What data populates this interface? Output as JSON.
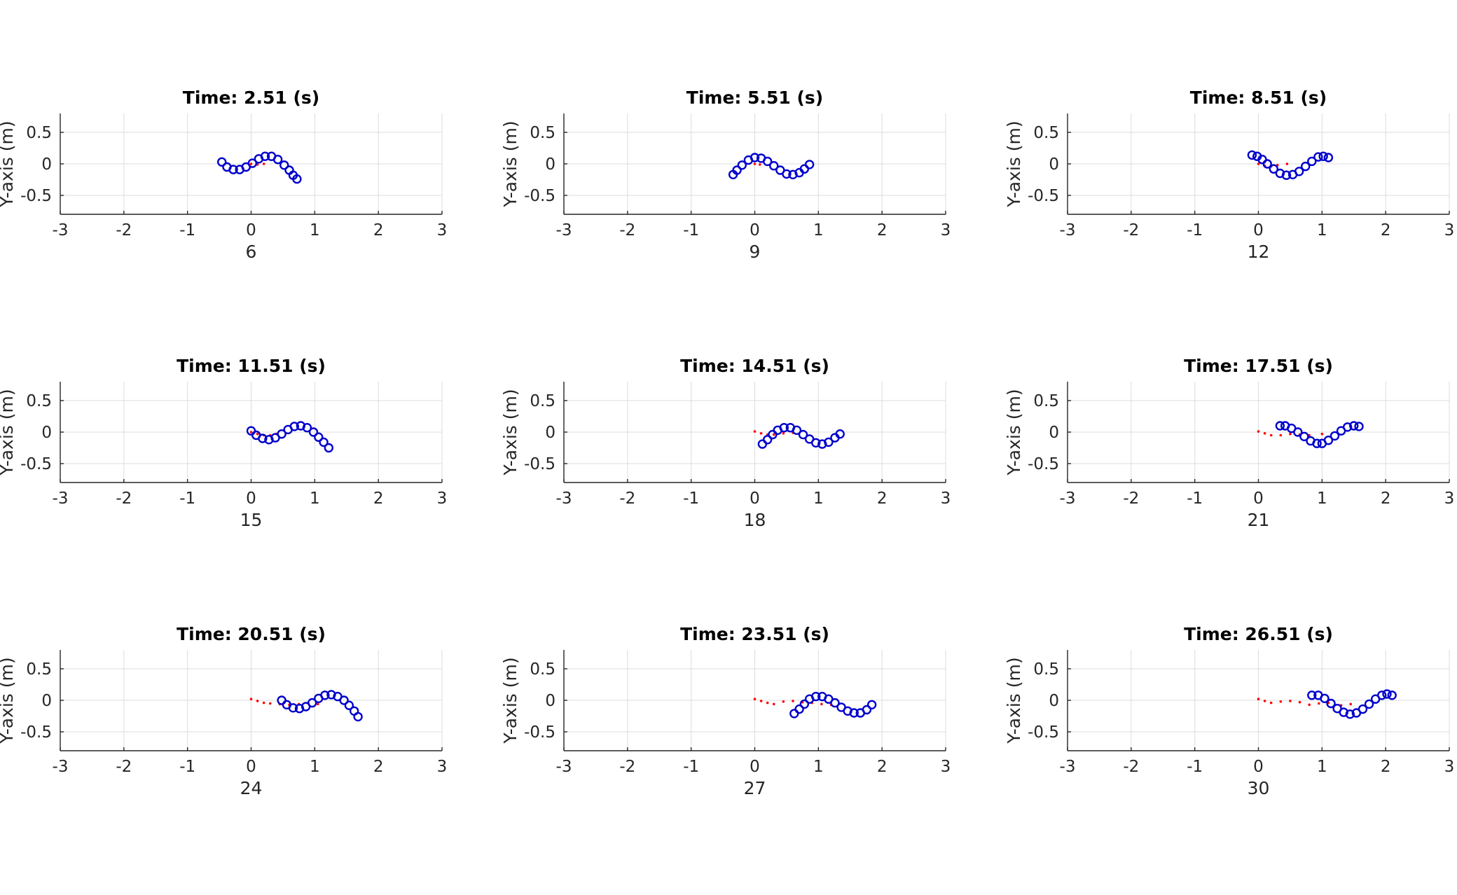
{
  "chart_data": [
    {
      "type": "scatter",
      "title": "Time: 2.51 (s)",
      "xlabel": "6",
      "ylabel": "Y-axis (m)",
      "xlim": [
        -3,
        3
      ],
      "ylim": [
        -0.8,
        0.8
      ],
      "xticks": [
        "-3",
        "-2",
        "-1",
        "0",
        "1",
        "2",
        "3"
      ],
      "yticks": [
        "0.5",
        "0",
        "-0.5"
      ],
      "grid": true,
      "series": [
        {
          "color": "#ff0000",
          "marker": "dot",
          "x": [
            0.0,
            0.1,
            0.2
          ],
          "y": [
            0.0,
            -0.01,
            0.0
          ]
        },
        {
          "color": "#0000cc",
          "marker": "circle",
          "x": [
            -0.46,
            -0.38,
            -0.28,
            -0.18,
            -0.08,
            0.02,
            0.12,
            0.22,
            0.32,
            0.42,
            0.52,
            0.6,
            0.66,
            0.72
          ],
          "y": [
            0.03,
            -0.05,
            -0.09,
            -0.09,
            -0.05,
            0.01,
            0.08,
            0.12,
            0.12,
            0.07,
            -0.02,
            -0.1,
            -0.18,
            -0.24
          ]
        }
      ]
    },
    {
      "type": "scatter",
      "title": "Time: 5.51 (s)",
      "xlabel": "9",
      "ylabel": "Y-axis (m)",
      "xlim": [
        -3,
        3
      ],
      "ylim": [
        -0.8,
        0.8
      ],
      "xticks": [
        "-3",
        "-2",
        "-1",
        "0",
        "1",
        "2",
        "3"
      ],
      "yticks": [
        "0.5",
        "0",
        "-0.5"
      ],
      "grid": true,
      "series": [
        {
          "color": "#ff0000",
          "marker": "dot",
          "x": [
            0.0,
            0.08
          ],
          "y": [
            0.0,
            -0.01
          ]
        },
        {
          "color": "#0000cc",
          "marker": "circle",
          "x": [
            -0.34,
            -0.28,
            -0.2,
            -0.1,
            0.0,
            0.1,
            0.2,
            0.3,
            0.4,
            0.5,
            0.6,
            0.7,
            0.78,
            0.86
          ],
          "y": [
            -0.17,
            -0.1,
            -0.02,
            0.06,
            0.1,
            0.09,
            0.04,
            -0.03,
            -0.1,
            -0.16,
            -0.17,
            -0.14,
            -0.08,
            -0.01
          ]
        }
      ]
    },
    {
      "type": "scatter",
      "title": "Time: 8.51 (s)",
      "xlabel": "12",
      "ylabel": "Y-axis (m)",
      "xlim": [
        -3,
        3
      ],
      "ylim": [
        -0.8,
        0.8
      ],
      "xticks": [
        "-3",
        "-2",
        "-1",
        "0",
        "1",
        "2",
        "3"
      ],
      "yticks": [
        "0.5",
        "0",
        "-0.5"
      ],
      "grid": true,
      "series": [
        {
          "color": "#ff0000",
          "marker": "dot",
          "x": [
            0.0,
            0.1,
            0.2,
            0.3,
            0.45
          ],
          "y": [
            0.0,
            -0.03,
            -0.04,
            -0.02,
            0.0
          ]
        },
        {
          "color": "#0000cc",
          "marker": "circle",
          "x": [
            -0.1,
            -0.02,
            0.06,
            0.14,
            0.24,
            0.34,
            0.44,
            0.54,
            0.64,
            0.74,
            0.84,
            0.94,
            1.02,
            1.1
          ],
          "y": [
            0.14,
            0.12,
            0.07,
            0.0,
            -0.08,
            -0.15,
            -0.18,
            -0.17,
            -0.12,
            -0.04,
            0.04,
            0.11,
            0.12,
            0.1
          ]
        }
      ]
    },
    {
      "type": "scatter",
      "title": "Time: 11.51 (s)",
      "xlabel": "15",
      "ylabel": "Y-axis (m)",
      "xlim": [
        -3,
        3
      ],
      "ylim": [
        -0.8,
        0.8
      ],
      "xticks": [
        "-3",
        "-2",
        "-1",
        "0",
        "1",
        "2",
        "3"
      ],
      "yticks": [
        "0.5",
        "0",
        "-0.5"
      ],
      "grid": true,
      "series": [
        {
          "color": "#ff0000",
          "marker": "dot",
          "x": [
            0.0,
            0.1,
            0.2,
            0.3,
            0.4
          ],
          "y": [
            0.0,
            -0.03,
            -0.05,
            -0.05,
            -0.03
          ]
        },
        {
          "color": "#0000cc",
          "marker": "circle",
          "x": [
            0.0,
            0.08,
            0.18,
            0.28,
            0.38,
            0.48,
            0.58,
            0.68,
            0.78,
            0.88,
            0.98,
            1.06,
            1.14,
            1.22
          ],
          "y": [
            0.02,
            -0.05,
            -0.1,
            -0.12,
            -0.09,
            -0.03,
            0.04,
            0.09,
            0.1,
            0.07,
            0.0,
            -0.08,
            -0.16,
            -0.25
          ]
        }
      ]
    },
    {
      "type": "scatter",
      "title": "Time: 14.51 (s)",
      "xlabel": "18",
      "ylabel": "Y-axis (m)",
      "xlim": [
        -3,
        3
      ],
      "ylim": [
        -0.8,
        0.8
      ],
      "xticks": [
        "-3",
        "-2",
        "-1",
        "0",
        "1",
        "2",
        "3"
      ],
      "yticks": [
        "0.5",
        "0",
        "-0.5"
      ],
      "grid": true,
      "series": [
        {
          "color": "#ff0000",
          "marker": "dot",
          "x": [
            0.0,
            0.1,
            0.2,
            0.3,
            0.45,
            0.6
          ],
          "y": [
            0.01,
            -0.02,
            -0.04,
            -0.04,
            -0.02,
            -0.01
          ]
        },
        {
          "color": "#0000cc",
          "marker": "circle",
          "x": [
            0.12,
            0.2,
            0.28,
            0.36,
            0.46,
            0.56,
            0.66,
            0.76,
            0.86,
            0.96,
            1.06,
            1.16,
            1.26,
            1.34
          ],
          "y": [
            -0.19,
            -0.12,
            -0.04,
            0.03,
            0.07,
            0.07,
            0.03,
            -0.04,
            -0.11,
            -0.17,
            -0.19,
            -0.16,
            -0.09,
            -0.03
          ]
        }
      ]
    },
    {
      "type": "scatter",
      "title": "Time: 17.51 (s)",
      "xlabel": "21",
      "ylabel": "Y-axis (m)",
      "xlim": [
        -3,
        3
      ],
      "ylim": [
        -0.8,
        0.8
      ],
      "xticks": [
        "-3",
        "-2",
        "-1",
        "0",
        "1",
        "2",
        "3"
      ],
      "yticks": [
        "0.5",
        "0",
        "-0.5"
      ],
      "grid": true,
      "series": [
        {
          "color": "#ff0000",
          "marker": "dot",
          "x": [
            0.0,
            0.1,
            0.2,
            0.35,
            0.5,
            0.65,
            0.8,
            1.0
          ],
          "y": [
            0.01,
            -0.02,
            -0.05,
            -0.05,
            -0.03,
            -0.04,
            -0.05,
            -0.03
          ]
        },
        {
          "color": "#0000cc",
          "marker": "circle",
          "x": [
            0.34,
            0.42,
            0.52,
            0.62,
            0.72,
            0.82,
            0.92,
            1.0,
            1.1,
            1.2,
            1.3,
            1.4,
            1.5,
            1.58
          ],
          "y": [
            0.1,
            0.1,
            0.06,
            0.0,
            -0.07,
            -0.14,
            -0.18,
            -0.18,
            -0.13,
            -0.06,
            0.02,
            0.08,
            0.1,
            0.09
          ]
        }
      ]
    },
    {
      "type": "scatter",
      "title": "Time: 20.51 (s)",
      "xlabel": "24",
      "ylabel": "Y-axis (m)",
      "xlim": [
        -3,
        3
      ],
      "ylim": [
        -0.8,
        0.8
      ],
      "xticks": [
        "-3",
        "-2",
        "-1",
        "0",
        "1",
        "2",
        "3"
      ],
      "yticks": [
        "0.5",
        "0",
        "-0.5"
      ],
      "grid": true,
      "series": [
        {
          "color": "#ff0000",
          "marker": "dot",
          "x": [
            0.0,
            0.1,
            0.2,
            0.3,
            0.45,
            0.6,
            0.75,
            0.9,
            1.05
          ],
          "y": [
            0.02,
            -0.01,
            -0.04,
            -0.05,
            -0.06,
            -0.07,
            -0.06,
            -0.05,
            -0.06
          ]
        },
        {
          "color": "#0000cc",
          "marker": "circle",
          "x": [
            0.48,
            0.56,
            0.66,
            0.76,
            0.86,
            0.96,
            1.06,
            1.16,
            1.26,
            1.36,
            1.46,
            1.54,
            1.62,
            1.68
          ],
          "y": [
            0.0,
            -0.07,
            -0.12,
            -0.13,
            -0.1,
            -0.04,
            0.03,
            0.08,
            0.09,
            0.06,
            0.0,
            -0.08,
            -0.17,
            -0.26
          ]
        }
      ]
    },
    {
      "type": "scatter",
      "title": "Time: 23.51 (s)",
      "xlabel": "27",
      "ylabel": "Y-axis (m)",
      "xlim": [
        -3,
        3
      ],
      "ylim": [
        -0.8,
        0.8
      ],
      "xticks": [
        "-3",
        "-2",
        "-1",
        "0",
        "1",
        "2",
        "3"
      ],
      "yticks": [
        "0.5",
        "0",
        "-0.5"
      ],
      "grid": true,
      "series": [
        {
          "color": "#ff0000",
          "marker": "dot",
          "x": [
            0.0,
            0.1,
            0.2,
            0.3,
            0.45,
            0.6,
            0.75,
            0.9,
            1.05,
            1.2
          ],
          "y": [
            0.02,
            -0.01,
            -0.04,
            -0.06,
            -0.02,
            -0.01,
            -0.03,
            -0.04,
            -0.06,
            -0.07
          ]
        },
        {
          "color": "#0000cc",
          "marker": "circle",
          "x": [
            0.62,
            0.7,
            0.78,
            0.86,
            0.96,
            1.06,
            1.16,
            1.26,
            1.36,
            1.46,
            1.56,
            1.66,
            1.76,
            1.84
          ],
          "y": [
            -0.21,
            -0.14,
            -0.06,
            0.02,
            0.06,
            0.06,
            0.02,
            -0.04,
            -0.11,
            -0.17,
            -0.2,
            -0.2,
            -0.15,
            -0.07
          ]
        }
      ]
    },
    {
      "type": "scatter",
      "title": "Time: 26.51 (s)",
      "xlabel": "30",
      "ylabel": "Y-axis (m)",
      "xlim": [
        -3,
        3
      ],
      "ylim": [
        -0.8,
        0.8
      ],
      "xticks": [
        "-3",
        "-2",
        "-1",
        "0",
        "1",
        "2",
        "3"
      ],
      "yticks": [
        "0.5",
        "0",
        "-0.5"
      ],
      "grid": true,
      "series": [
        {
          "color": "#ff0000",
          "marker": "dot",
          "x": [
            0.0,
            0.1,
            0.2,
            0.35,
            0.5,
            0.65,
            0.8,
            0.95,
            1.1,
            1.3,
            1.45
          ],
          "y": [
            0.02,
            -0.01,
            -0.04,
            -0.02,
            -0.01,
            -0.03,
            -0.07,
            -0.05,
            -0.04,
            -0.08,
            -0.06
          ]
        },
        {
          "color": "#0000cc",
          "marker": "circle",
          "x": [
            0.84,
            0.94,
            1.04,
            1.14,
            1.24,
            1.34,
            1.44,
            1.54,
            1.64,
            1.74,
            1.84,
            1.94,
            2.02,
            2.1
          ],
          "y": [
            0.08,
            0.08,
            0.03,
            -0.05,
            -0.13,
            -0.19,
            -0.22,
            -0.2,
            -0.14,
            -0.06,
            0.02,
            0.08,
            0.1,
            0.08
          ]
        }
      ]
    }
  ]
}
